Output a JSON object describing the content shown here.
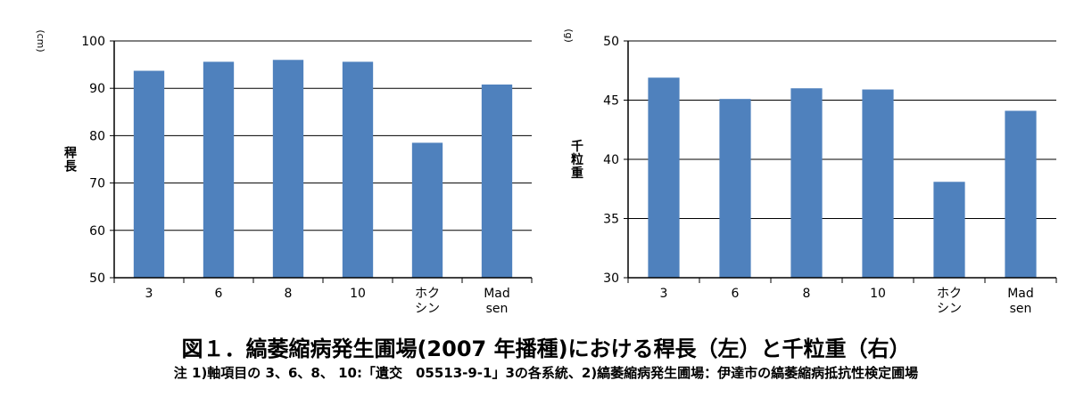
{
  "chart_data": [
    {
      "type": "bar",
      "ylabel": "稈長",
      "yunit": "(cm)",
      "ylim": [
        50,
        100
      ],
      "yticks": [
        50,
        60,
        70,
        80,
        90,
        100
      ],
      "categories": [
        "3",
        "6",
        "8",
        "10",
        "ホク\nシン",
        "Mad\nsen"
      ],
      "values": [
        93.7,
        95.6,
        96.0,
        95.6,
        78.5,
        90.8
      ],
      "color": "#4f81bd",
      "grid": true,
      "legend": "none"
    },
    {
      "type": "bar",
      "ylabel": "千粒重",
      "yunit": "(g)",
      "ylim": [
        30,
        50
      ],
      "yticks": [
        30,
        35,
        40,
        45,
        50
      ],
      "categories": [
        "3",
        "6",
        "8",
        "10",
        "ホク\nシン",
        "Mad\nsen"
      ],
      "values": [
        46.9,
        45.1,
        46.0,
        45.9,
        38.1,
        44.1
      ],
      "color": "#4f81bd",
      "grid": true,
      "legend": "none"
    }
  ],
  "caption": {
    "title": "図１．縞萎縮病発生圃場(2007 年播種)における稈長（左）と千粒重（右）",
    "note": "注 1)軸項目の 3、6、8、 10:「遺交　05513-9-1」3の各系統、2)縞萎縮病発生圃場：伊達市の縞萎縮病抵抗性検定圃場"
  }
}
